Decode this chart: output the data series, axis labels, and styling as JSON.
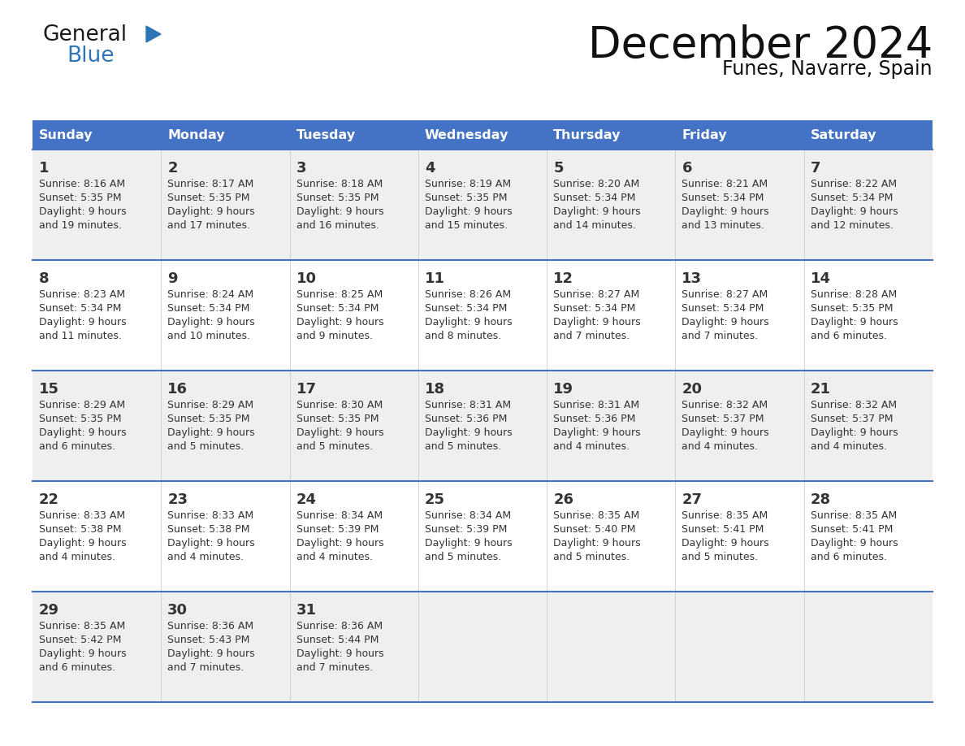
{
  "title": "December 2024",
  "subtitle": "Funes, Navarre, Spain",
  "header_color": "#4472C4",
  "header_text_color": "#FFFFFF",
  "row_bg_odd": "#EFEFEF",
  "row_bg_even": "#FFFFFF",
  "border_color": "#4472C4",
  "text_color": "#333333",
  "days_of_week": [
    "Sunday",
    "Monday",
    "Tuesday",
    "Wednesday",
    "Thursday",
    "Friday",
    "Saturday"
  ],
  "calendar_data": [
    [
      {
        "day": "1",
        "sunrise": "8:16 AM",
        "sunset": "5:35 PM",
        "daylight_line1": "Daylight: 9 hours",
        "daylight_line2": "and 19 minutes."
      },
      {
        "day": "2",
        "sunrise": "8:17 AM",
        "sunset": "5:35 PM",
        "daylight_line1": "Daylight: 9 hours",
        "daylight_line2": "and 17 minutes."
      },
      {
        "day": "3",
        "sunrise": "8:18 AM",
        "sunset": "5:35 PM",
        "daylight_line1": "Daylight: 9 hours",
        "daylight_line2": "and 16 minutes."
      },
      {
        "day": "4",
        "sunrise": "8:19 AM",
        "sunset": "5:35 PM",
        "daylight_line1": "Daylight: 9 hours",
        "daylight_line2": "and 15 minutes."
      },
      {
        "day": "5",
        "sunrise": "8:20 AM",
        "sunset": "5:34 PM",
        "daylight_line1": "Daylight: 9 hours",
        "daylight_line2": "and 14 minutes."
      },
      {
        "day": "6",
        "sunrise": "8:21 AM",
        "sunset": "5:34 PM",
        "daylight_line1": "Daylight: 9 hours",
        "daylight_line2": "and 13 minutes."
      },
      {
        "day": "7",
        "sunrise": "8:22 AM",
        "sunset": "5:34 PM",
        "daylight_line1": "Daylight: 9 hours",
        "daylight_line2": "and 12 minutes."
      }
    ],
    [
      {
        "day": "8",
        "sunrise": "8:23 AM",
        "sunset": "5:34 PM",
        "daylight_line1": "Daylight: 9 hours",
        "daylight_line2": "and 11 minutes."
      },
      {
        "day": "9",
        "sunrise": "8:24 AM",
        "sunset": "5:34 PM",
        "daylight_line1": "Daylight: 9 hours",
        "daylight_line2": "and 10 minutes."
      },
      {
        "day": "10",
        "sunrise": "8:25 AM",
        "sunset": "5:34 PM",
        "daylight_line1": "Daylight: 9 hours",
        "daylight_line2": "and 9 minutes."
      },
      {
        "day": "11",
        "sunrise": "8:26 AM",
        "sunset": "5:34 PM",
        "daylight_line1": "Daylight: 9 hours",
        "daylight_line2": "and 8 minutes."
      },
      {
        "day": "12",
        "sunrise": "8:27 AM",
        "sunset": "5:34 PM",
        "daylight_line1": "Daylight: 9 hours",
        "daylight_line2": "and 7 minutes."
      },
      {
        "day": "13",
        "sunrise": "8:27 AM",
        "sunset": "5:34 PM",
        "daylight_line1": "Daylight: 9 hours",
        "daylight_line2": "and 7 minutes."
      },
      {
        "day": "14",
        "sunrise": "8:28 AM",
        "sunset": "5:35 PM",
        "daylight_line1": "Daylight: 9 hours",
        "daylight_line2": "and 6 minutes."
      }
    ],
    [
      {
        "day": "15",
        "sunrise": "8:29 AM",
        "sunset": "5:35 PM",
        "daylight_line1": "Daylight: 9 hours",
        "daylight_line2": "and 6 minutes."
      },
      {
        "day": "16",
        "sunrise": "8:29 AM",
        "sunset": "5:35 PM",
        "daylight_line1": "Daylight: 9 hours",
        "daylight_line2": "and 5 minutes."
      },
      {
        "day": "17",
        "sunrise": "8:30 AM",
        "sunset": "5:35 PM",
        "daylight_line1": "Daylight: 9 hours",
        "daylight_line2": "and 5 minutes."
      },
      {
        "day": "18",
        "sunrise": "8:31 AM",
        "sunset": "5:36 PM",
        "daylight_line1": "Daylight: 9 hours",
        "daylight_line2": "and 5 minutes."
      },
      {
        "day": "19",
        "sunrise": "8:31 AM",
        "sunset": "5:36 PM",
        "daylight_line1": "Daylight: 9 hours",
        "daylight_line2": "and 4 minutes."
      },
      {
        "day": "20",
        "sunrise": "8:32 AM",
        "sunset": "5:37 PM",
        "daylight_line1": "Daylight: 9 hours",
        "daylight_line2": "and 4 minutes."
      },
      {
        "day": "21",
        "sunrise": "8:32 AM",
        "sunset": "5:37 PM",
        "daylight_line1": "Daylight: 9 hours",
        "daylight_line2": "and 4 minutes."
      }
    ],
    [
      {
        "day": "22",
        "sunrise": "8:33 AM",
        "sunset": "5:38 PM",
        "daylight_line1": "Daylight: 9 hours",
        "daylight_line2": "and 4 minutes."
      },
      {
        "day": "23",
        "sunrise": "8:33 AM",
        "sunset": "5:38 PM",
        "daylight_line1": "Daylight: 9 hours",
        "daylight_line2": "and 4 minutes."
      },
      {
        "day": "24",
        "sunrise": "8:34 AM",
        "sunset": "5:39 PM",
        "daylight_line1": "Daylight: 9 hours",
        "daylight_line2": "and 4 minutes."
      },
      {
        "day": "25",
        "sunrise": "8:34 AM",
        "sunset": "5:39 PM",
        "daylight_line1": "Daylight: 9 hours",
        "daylight_line2": "and 5 minutes."
      },
      {
        "day": "26",
        "sunrise": "8:35 AM",
        "sunset": "5:40 PM",
        "daylight_line1": "Daylight: 9 hours",
        "daylight_line2": "and 5 minutes."
      },
      {
        "day": "27",
        "sunrise": "8:35 AM",
        "sunset": "5:41 PM",
        "daylight_line1": "Daylight: 9 hours",
        "daylight_line2": "and 5 minutes."
      },
      {
        "day": "28",
        "sunrise": "8:35 AM",
        "sunset": "5:41 PM",
        "daylight_line1": "Daylight: 9 hours",
        "daylight_line2": "and 6 minutes."
      }
    ],
    [
      {
        "day": "29",
        "sunrise": "8:35 AM",
        "sunset": "5:42 PM",
        "daylight_line1": "Daylight: 9 hours",
        "daylight_line2": "and 6 minutes."
      },
      {
        "day": "30",
        "sunrise": "8:36 AM",
        "sunset": "5:43 PM",
        "daylight_line1": "Daylight: 9 hours",
        "daylight_line2": "and 7 minutes."
      },
      {
        "day": "31",
        "sunrise": "8:36 AM",
        "sunset": "5:44 PM",
        "daylight_line1": "Daylight: 9 hours",
        "daylight_line2": "and 7 minutes."
      },
      null,
      null,
      null,
      null
    ]
  ]
}
